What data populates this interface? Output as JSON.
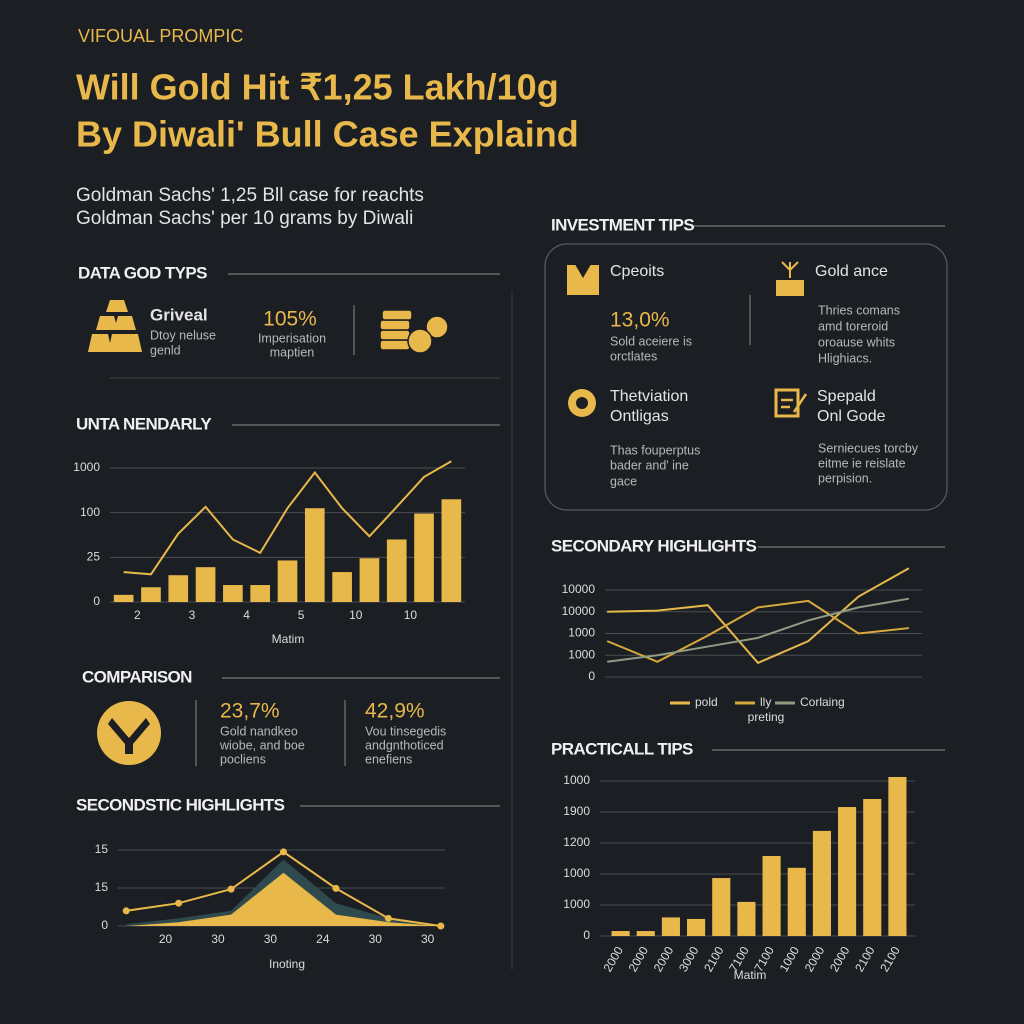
{
  "header": {
    "kicker": "VIFOUAL PROMPIC",
    "title": [
      "Will Gold Hit ₹1,25 Lakh/10g",
      "By Diwali' Bull Case Explaind"
    ],
    "subtitle": [
      "Goldman Sachs' 1,25 Bll case for reachts",
      "Goldman Sachs' per 10 grams by Diwali"
    ]
  },
  "data_types": {
    "heading": "DATA GOD TYPS",
    "items": [
      {
        "label": "Griveal",
        "text": [
          "Dtoy neluse",
          "genld"
        ]
      },
      {
        "value": "105%",
        "text": [
          "Imperisation",
          "maptien"
        ]
      }
    ]
  },
  "comparison": {
    "heading": "COMPARISON",
    "items": [
      {
        "value": "23,7%",
        "text": [
          "Gold nandkeo",
          "wiobe, and boe",
          "pocliens"
        ]
      },
      {
        "value": "42,9%",
        "text": [
          "Vou tinsegedis",
          "andgnthoticed",
          "enefiens"
        ]
      }
    ]
  },
  "investment_tips": {
    "heading": "INVESTMENT TIPS",
    "cards": [
      {
        "title": [
          "Cpeoits"
        ],
        "value": "13,0%",
        "text": [
          "Sold aceiere is",
          "orctlates"
        ]
      },
      {
        "title": [
          "Gold ance"
        ],
        "text": [
          "Thries comans",
          "amd toreroid",
          "oroause whits",
          "Hlighiacs."
        ]
      },
      {
        "title": [
          "Thetviation",
          "Ontligas"
        ],
        "text": [
          "Thas fouperptus",
          "bader and' ine",
          "gace"
        ]
      },
      {
        "title": [
          "Spepald",
          "Onl Gode"
        ],
        "text": [
          "Serniecues torcby",
          "eitme ie reislate",
          "perpision."
        ]
      }
    ]
  },
  "chart_data": [
    {
      "type": "bar",
      "title": "UNTA NENDARLY",
      "x_label": "Matim",
      "grid": true,
      "categories": [
        "2",
        null,
        "3",
        null,
        "4",
        null,
        "5",
        null,
        "10",
        null,
        "10",
        null,
        null
      ],
      "ylim": [
        0,
        3
      ],
      "yticks": [
        0,
        {
          "value": 1,
          "label": "25"
        },
        {
          "value": 2,
          "label": "100"
        },
        {
          "value": 3,
          "label": "1000"
        }
      ],
      "series": [
        {
          "type": "bar",
          "color": "#e8b84a",
          "values": [
            0.16,
            0.33,
            0.6,
            0.78,
            0.38,
            0.38,
            0.93,
            2.1,
            0.67,
            0.98,
            1.4,
            1.98,
            2.3
          ]
        },
        {
          "type": "line",
          "color": "#e8b84a",
          "values": [
            0.67,
            0.62,
            1.53,
            2.13,
            1.4,
            1.1,
            2.1,
            2.9,
            2.1,
            1.47,
            2.13,
            2.8,
            3.15
          ]
        }
      ]
    },
    {
      "type": "area",
      "title": "SECONDSTIC HIGHLIGHTS",
      "x_label": "Inoting",
      "grid": true,
      "categories": [
        null,
        "20",
        "30",
        "30",
        "24",
        "30",
        "30"
      ],
      "ylim": [
        0,
        2
      ],
      "yticks": [
        0,
        {
          "value": 1,
          "label": "15"
        },
        {
          "value": 2,
          "label": "15"
        }
      ],
      "series": [
        {
          "type": "area",
          "color": "#2f4a4d",
          "values": [
            0.05,
            0.2,
            0.4,
            1.75,
            0.6,
            0.2,
            0
          ]
        },
        {
          "type": "area",
          "color": "#e8b84a",
          "values": [
            0,
            0.1,
            0.3,
            1.4,
            0.3,
            0.1,
            0
          ]
        },
        {
          "type": "line",
          "color": "#e8b84a",
          "markers": true,
          "values": [
            0.4,
            0.6,
            0.97,
            1.95,
            0.99,
            0.2,
            0
          ]
        }
      ]
    },
    {
      "type": "line",
      "title": "SECONDARY HIGHLIGHTS",
      "grid": true,
      "legend_title": "preting",
      "categories": [
        null,
        null,
        null,
        null,
        null,
        null,
        null
      ],
      "ylim": [
        0,
        4
      ],
      "yticks": [
        0,
        {
          "value": 1,
          "label": "1000"
        },
        {
          "value": 2,
          "label": "1000"
        },
        {
          "value": 3,
          "label": "10000"
        },
        {
          "value": 4,
          "label": "10000"
        }
      ],
      "series": [
        {
          "type": "line",
          "name": "pold",
          "color": "#e8b84a",
          "values": [
            3.0,
            3.05,
            3.3,
            0.65,
            1.65,
            3.7,
            5.0
          ]
        },
        {
          "type": "line",
          "name": "lly",
          "color": "#d9a93c",
          "values": [
            1.65,
            0.7,
            1.9,
            3.2,
            3.5,
            2.0,
            2.25
          ]
        },
        {
          "type": "line",
          "name": "Corlaing",
          "color": "#8f9c84",
          "values": [
            0.7,
            1.0,
            1.4,
            1.8,
            2.6,
            3.2,
            3.6
          ]
        }
      ]
    },
    {
      "type": "bar",
      "title": "PRACTICALL TIPS",
      "x_label": "Matim",
      "grid": true,
      "categories": [
        "2000",
        "2000",
        "2000",
        "3000",
        "2100",
        "7100",
        "7100",
        "1000",
        "2000",
        "2000",
        "2100",
        "2100"
      ],
      "ylim": [
        0,
        5
      ],
      "yticks": [
        0,
        {
          "value": 1,
          "label": "1000"
        },
        {
          "value": 2,
          "label": "1000"
        },
        {
          "value": 3,
          "label": "1200"
        },
        {
          "value": 4,
          "label": "1900"
        },
        {
          "value": 5,
          "label": "1000"
        }
      ],
      "series": [
        {
          "type": "bar",
          "color": "#e8b84a",
          "values": [
            0.16,
            0.16,
            0.6,
            0.55,
            1.87,
            1.1,
            2.58,
            2.2,
            3.39,
            4.16,
            4.42,
            5.13
          ]
        }
      ]
    }
  ]
}
